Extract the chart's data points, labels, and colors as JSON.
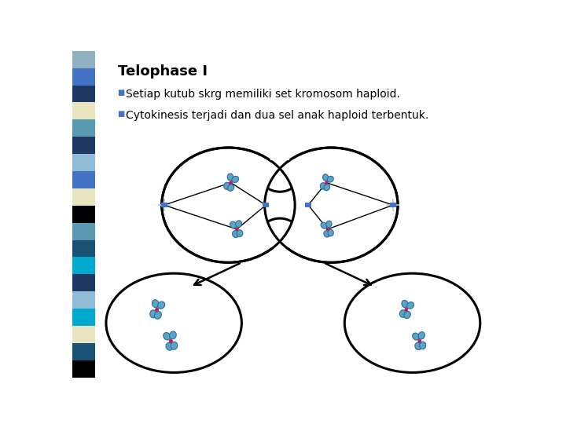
{
  "title": "Telophase I",
  "bullet1": "Setiap kutub skrg memiliki set kromosom haploid.",
  "bullet2": "Cytokinesis terjadi dan dua sel anak haploid terbentuk.",
  "bg_color": "#ffffff",
  "sidebar_colors": [
    "#8fb0c0",
    "#4472c4",
    "#1f3864",
    "#e8e4c0",
    "#5a9ab0",
    "#1f3864",
    "#90bcd8",
    "#4472c4",
    "#e8e4c0",
    "#000000",
    "#5a9ab0",
    "#1a5276",
    "#00aacc",
    "#1f3864",
    "#90bcd8",
    "#00aacc",
    "#e8e4c0",
    "#1a5276",
    "#000000"
  ],
  "title_fontsize": 13,
  "bullet_fontsize": 10,
  "title_color": "#000000",
  "bullet_color": "#000000",
  "bullet_marker_color": "#4472c4",
  "chrom_color": "#5ba3c9",
  "chrom_edge_color": "#2c6e96",
  "centromere_color": "#c0185c",
  "pole_color": "#4472c4",
  "spindle_color": "#8ab4d4",
  "cell_edge_color": "#111111",
  "cell_face_color": "#ffffff"
}
